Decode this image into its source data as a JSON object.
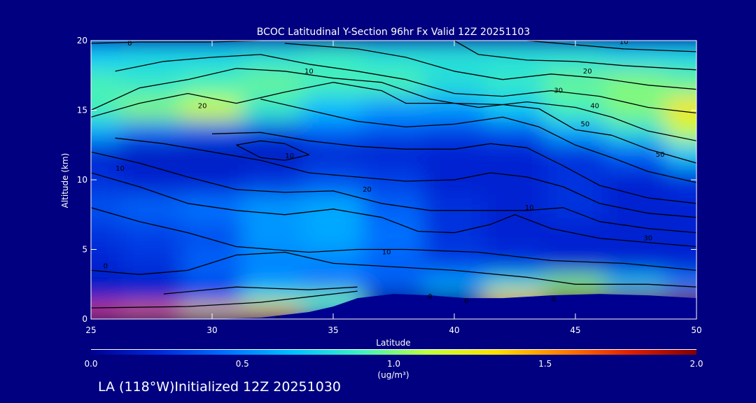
{
  "chart_data": {
    "type": "heatmap",
    "title": "BCOC Latitudinal Y-Section 96hr  Fx Valid 12Z 20251103",
    "xlabel": "Latitude",
    "ylabel": "Altitude (km)",
    "xlim": [
      25,
      50
    ],
    "ylim": [
      0,
      20
    ],
    "x_ticks": [
      25,
      30,
      35,
      40,
      45,
      50
    ],
    "y_ticks": [
      0,
      5,
      10,
      15,
      20
    ],
    "colorbar": {
      "min": 0.0,
      "max": 2.0,
      "ticks": [
        "0.0",
        "0.5",
        "1.0",
        "1.5",
        "2.0"
      ],
      "unit_label": "(ug/m³)"
    },
    "color_stops": [
      "#000090",
      "#0028d8",
      "#0070ff",
      "#00c0ff",
      "#40f0c0",
      "#c0ff40",
      "#ffe000",
      "#ff8000",
      "#e02000",
      "#800000"
    ],
    "latitudes": [
      25,
      27.5,
      30,
      32.5,
      35,
      37.5,
      40,
      42.5,
      45,
      47.5,
      50
    ],
    "altitudes": [
      0.5,
      1.5,
      2.5,
      4,
      6,
      8,
      10,
      12,
      13.5,
      15,
      17,
      19
    ],
    "values": [
      [
        1.7,
        1.6,
        1.35,
        1.45,
        0.7,
        0.0,
        0.0,
        0.0,
        0.0,
        0.0,
        0.0
      ],
      [
        0.2,
        0.2,
        0.3,
        0.9,
        1.0,
        0.0,
        0.0,
        1.4,
        2.0,
        2.0,
        2.0
      ],
      [
        0.15,
        0.18,
        0.35,
        0.55,
        0.45,
        0.4,
        0.6,
        0.8,
        1.0,
        0.7,
        0.5
      ],
      [
        0.2,
        0.25,
        0.4,
        0.5,
        0.5,
        0.4,
        0.3,
        0.25,
        0.2,
        0.2,
        0.2
      ],
      [
        0.25,
        0.3,
        0.35,
        0.55,
        0.6,
        0.45,
        0.25,
        0.2,
        0.2,
        0.2,
        0.2
      ],
      [
        0.35,
        0.4,
        0.45,
        0.55,
        0.6,
        0.4,
        0.25,
        0.2,
        0.25,
        0.2,
        0.2
      ],
      [
        0.25,
        0.2,
        0.2,
        0.25,
        0.35,
        0.3,
        0.2,
        0.2,
        0.25,
        0.2,
        0.25
      ],
      [
        0.2,
        0.15,
        0.15,
        0.15,
        0.2,
        0.2,
        0.2,
        0.2,
        0.25,
        0.4,
        0.7
      ],
      [
        0.6,
        0.4,
        0.35,
        0.3,
        0.4,
        0.35,
        0.3,
        0.35,
        0.6,
        0.8,
        1.1
      ],
      [
        0.9,
        1.0,
        1.15,
        0.85,
        0.65,
        0.55,
        0.55,
        0.7,
        0.9,
        1.0,
        1.3
      ],
      [
        0.9,
        0.85,
        0.9,
        0.95,
        0.9,
        0.9,
        0.8,
        0.85,
        0.95,
        1.0,
        0.95
      ],
      [
        0.7,
        0.75,
        0.75,
        0.8,
        0.85,
        0.8,
        0.8,
        0.8,
        0.8,
        0.75,
        0.75
      ]
    ],
    "terrain_km": [
      [
        25,
        0
      ],
      [
        30,
        0
      ],
      [
        32,
        0.1
      ],
      [
        34,
        0.5
      ],
      [
        35,
        0.9
      ],
      [
        36,
        1.5
      ],
      [
        37.5,
        1.8
      ],
      [
        39,
        1.7
      ],
      [
        40.5,
        1.5
      ],
      [
        42,
        1.5
      ],
      [
        43,
        1.6
      ],
      [
        44,
        1.7
      ],
      [
        46,
        1.8
      ],
      [
        48,
        1.7
      ],
      [
        50,
        1.5
      ]
    ],
    "contour_lines": [
      [
        [
          25,
          0.8
        ],
        [
          29,
          0.9
        ],
        [
          32,
          1.2
        ],
        [
          34,
          1.6
        ],
        [
          36,
          2.0
        ]
      ],
      [
        [
          28,
          1.8
        ],
        [
          31,
          2.3
        ],
        [
          34,
          2.1
        ],
        [
          36,
          2.3
        ]
      ],
      [
        [
          25,
          3.5
        ],
        [
          27,
          3.2
        ],
        [
          29,
          3.5
        ],
        [
          31,
          4.6
        ],
        [
          33,
          4.8
        ],
        [
          35,
          4.0
        ],
        [
          37,
          3.8
        ],
        [
          40,
          3.5
        ],
        [
          43,
          3.0
        ],
        [
          45,
          2.5
        ],
        [
          48,
          2.5
        ],
        [
          50,
          2.3
        ]
      ],
      [
        [
          25,
          8.0
        ],
        [
          27,
          7.0
        ],
        [
          29,
          6.2
        ],
        [
          31,
          5.2
        ],
        [
          34,
          4.8
        ],
        [
          36,
          5.0
        ],
        [
          38,
          5.0
        ],
        [
          41,
          4.8
        ],
        [
          44,
          4.2
        ],
        [
          47,
          4.0
        ],
        [
          50,
          3.5
        ]
      ],
      [
        [
          25,
          10.5
        ],
        [
          27,
          9.5
        ],
        [
          29,
          8.3
        ],
        [
          31,
          7.8
        ],
        [
          33,
          7.5
        ],
        [
          35,
          7.9
        ],
        [
          37,
          7.3
        ],
        [
          38.5,
          6.3
        ],
        [
          40,
          6.2
        ],
        [
          41.5,
          6.8
        ],
        [
          42.5,
          7.5
        ],
        [
          44,
          6.5
        ],
        [
          46,
          5.8
        ],
        [
          48,
          5.5
        ],
        [
          50,
          5.2
        ]
      ],
      [
        [
          25,
          12.0
        ],
        [
          27,
          11.2
        ],
        [
          29,
          10.2
        ],
        [
          31,
          9.3
        ],
        [
          33,
          9.1
        ],
        [
          35,
          9.2
        ],
        [
          37,
          8.3
        ],
        [
          39,
          7.8
        ],
        [
          41,
          7.8
        ],
        [
          43,
          7.8
        ],
        [
          44.5,
          8.0
        ],
        [
          46,
          7.0
        ],
        [
          48,
          6.5
        ],
        [
          50,
          6.2
        ]
      ],
      [
        [
          26,
          13.0
        ],
        [
          28,
          12.6
        ],
        [
          30,
          12.0
        ],
        [
          32,
          11.4
        ],
        [
          34,
          10.5
        ],
        [
          36,
          10.2
        ],
        [
          38,
          9.9
        ],
        [
          40,
          10.0
        ],
        [
          41.5,
          10.5
        ],
        [
          43,
          10.2
        ],
        [
          44.5,
          9.5
        ],
        [
          46,
          8.3
        ],
        [
          48,
          7.6
        ],
        [
          50,
          7.3
        ]
      ],
      [
        [
          30,
          13.3
        ],
        [
          32,
          13.4
        ],
        [
          34,
          12.8
        ],
        [
          36,
          12.4
        ],
        [
          38,
          12.2
        ],
        [
          40,
          12.2
        ],
        [
          41.5,
          12.6
        ],
        [
          43,
          12.3
        ],
        [
          44.5,
          11.0
        ],
        [
          46,
          9.6
        ],
        [
          48,
          8.7
        ],
        [
          50,
          8.3
        ]
      ],
      [
        [
          31,
          12.5
        ],
        [
          32,
          12.8
        ],
        [
          33,
          12.6
        ],
        [
          34,
          11.8
        ],
        [
          33,
          11.4
        ],
        [
          32,
          11.6
        ],
        [
          31,
          12.5
        ]
      ],
      [
        [
          32,
          15.8
        ],
        [
          34,
          15.0
        ],
        [
          36,
          14.2
        ],
        [
          38,
          13.8
        ],
        [
          40,
          14.0
        ],
        [
          42,
          14.5
        ],
        [
          43.5,
          13.8
        ],
        [
          45,
          12.5
        ],
        [
          46.5,
          11.6
        ],
        [
          48,
          10.6
        ],
        [
          50,
          9.8
        ]
      ],
      [
        [
          25,
          14.5
        ],
        [
          27,
          15.5
        ],
        [
          29,
          16.2
        ],
        [
          31,
          15.5
        ],
        [
          33,
          16.3
        ],
        [
          35,
          17.0
        ],
        [
          37,
          16.4
        ],
        [
          38,
          15.5
        ],
        [
          40,
          15.5
        ],
        [
          42,
          15.4
        ],
        [
          43.5,
          15.1
        ],
        [
          45,
          13.6
        ],
        [
          46.5,
          13.2
        ],
        [
          48,
          12.2
        ],
        [
          50,
          11.2
        ]
      ],
      [
        [
          25,
          15.0
        ],
        [
          27,
          16.6
        ],
        [
          29,
          17.2
        ],
        [
          31,
          18.0
        ],
        [
          33,
          17.8
        ],
        [
          35,
          17.3
        ],
        [
          37,
          17.0
        ],
        [
          39,
          15.8
        ],
        [
          41,
          15.2
        ],
        [
          43,
          15.6
        ],
        [
          45,
          15.2
        ],
        [
          46.5,
          14.5
        ],
        [
          48,
          13.5
        ],
        [
          50,
          12.8
        ]
      ],
      [
        [
          26,
          17.8
        ],
        [
          28,
          18.5
        ],
        [
          30,
          18.8
        ],
        [
          32,
          19.0
        ],
        [
          34,
          18.3
        ],
        [
          36,
          17.8
        ],
        [
          38,
          17.2
        ],
        [
          40,
          16.2
        ],
        [
          42,
          16.0
        ],
        [
          44,
          16.4
        ],
        [
          46,
          16.0
        ],
        [
          48,
          15.2
        ],
        [
          50,
          14.8
        ]
      ],
      [
        [
          33,
          19.8
        ],
        [
          36,
          19.4
        ],
        [
          38,
          18.8
        ],
        [
          40,
          17.8
        ],
        [
          42,
          17.2
        ],
        [
          44,
          17.6
        ],
        [
          46,
          17.3
        ],
        [
          48,
          16.8
        ],
        [
          50,
          16.5
        ]
      ],
      [
        [
          40,
          20
        ],
        [
          41,
          19.0
        ],
        [
          43,
          18.6
        ],
        [
          45,
          18.5
        ],
        [
          47,
          18.2
        ],
        [
          50,
          17.9
        ]
      ],
      [
        [
          43,
          20
        ],
        [
          45,
          19.7
        ],
        [
          47,
          19.4
        ],
        [
          50,
          19.2
        ]
      ],
      [
        [
          25,
          19.8
        ],
        [
          27,
          19.9
        ],
        [
          30,
          19.9
        ],
        [
          32,
          20
        ]
      ]
    ],
    "contour_labels": [
      {
        "x": 26.6,
        "y": 19.8,
        "text": "0"
      },
      {
        "x": 34.0,
        "y": 17.8,
        "text": "10"
      },
      {
        "x": 47.0,
        "y": 19.9,
        "text": "10"
      },
      {
        "x": 45.5,
        "y": 17.8,
        "text": "20"
      },
      {
        "x": 44.3,
        "y": 16.4,
        "text": "30"
      },
      {
        "x": 45.8,
        "y": 15.3,
        "text": "40"
      },
      {
        "x": 45.4,
        "y": 14.0,
        "text": "50"
      },
      {
        "x": 48.5,
        "y": 11.8,
        "text": "50"
      },
      {
        "x": 29.6,
        "y": 15.3,
        "text": "20"
      },
      {
        "x": 33.2,
        "y": 11.7,
        "text": "10"
      },
      {
        "x": 26.2,
        "y": 10.8,
        "text": "10"
      },
      {
        "x": 36.4,
        "y": 9.3,
        "text": "20"
      },
      {
        "x": 43.1,
        "y": 8.0,
        "text": "10"
      },
      {
        "x": 48.0,
        "y": 5.8,
        "text": "30"
      },
      {
        "x": 37.2,
        "y": 4.8,
        "text": "10"
      },
      {
        "x": 25.6,
        "y": 3.8,
        "text": "0"
      },
      {
        "x": 32.7,
        "y": 0.0,
        "text": "0"
      },
      {
        "x": 39.0,
        "y": 1.6,
        "text": "0"
      },
      {
        "x": 40.5,
        "y": 1.3,
        "text": "0"
      },
      {
        "x": 44.1,
        "y": 1.4,
        "text": "0"
      }
    ]
  },
  "footer_text": "LA (118°W)Initialized 12Z 20251030"
}
